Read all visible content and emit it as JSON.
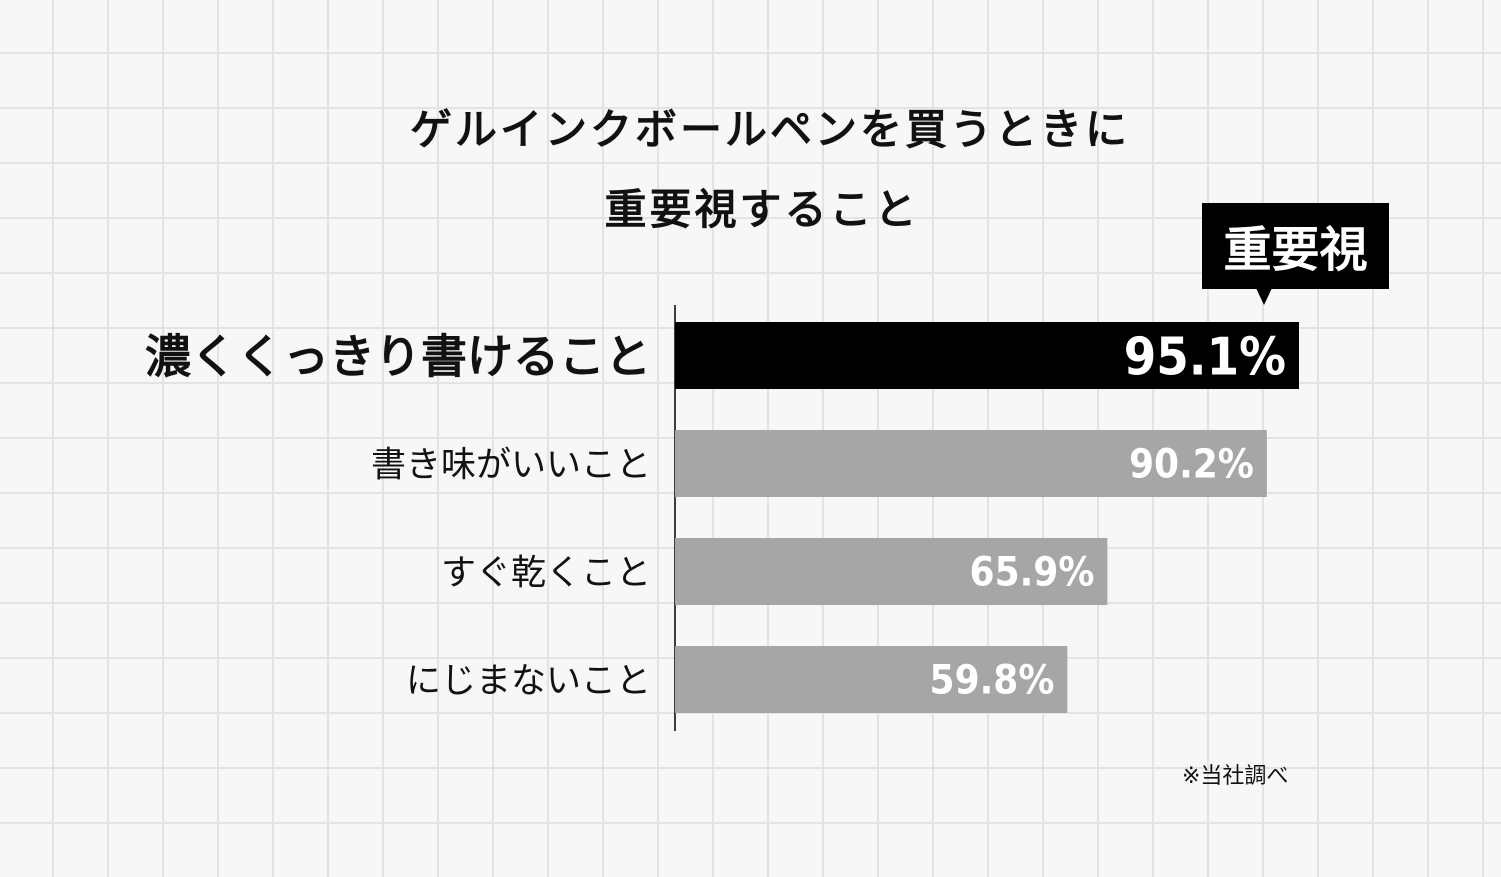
{
  "title_line1": "ゲルインクボールペンを買うときに",
  "title_line2": "重要視すること",
  "source_note": "※当社調べ",
  "colors": {
    "highlight": "#000000",
    "bar": "#a6a6a6",
    "text": "#111111",
    "label_on_bar": "#ffffff"
  },
  "chart_data": {
    "type": "bar",
    "orientation": "horizontal",
    "categories": [
      "濃くくっきり書けること",
      "書き味がいいこと",
      "すぐ乾くこと",
      "にじまないこと"
    ],
    "values": [
      95.1,
      90.2,
      65.9,
      59.8
    ],
    "value_labels": [
      "95.1%",
      "90.2%",
      "65.9%",
      "59.8%"
    ],
    "highlighted_index": 0,
    "callout": "重要視",
    "unit": "%",
    "xlim": [
      0,
      100
    ],
    "grid": false
  }
}
